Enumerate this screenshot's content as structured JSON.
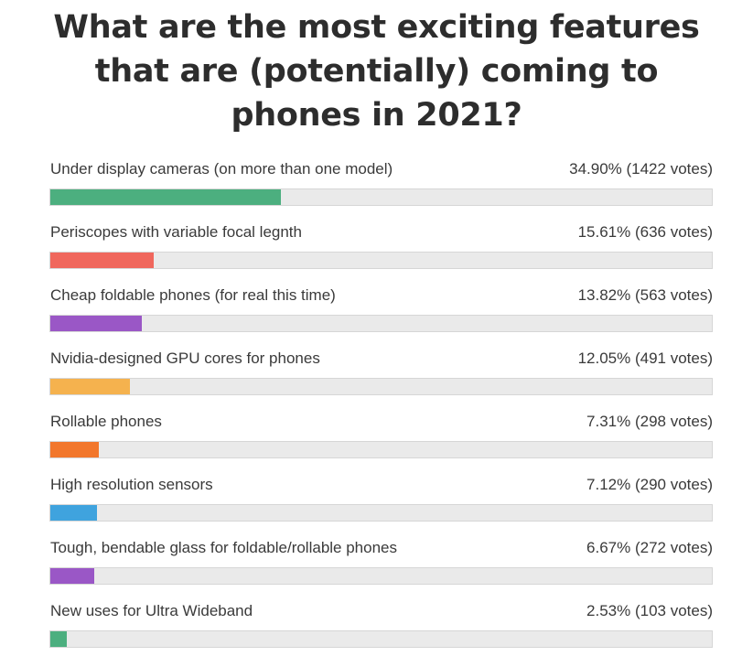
{
  "poll": {
    "title": "What are the most exciting features that are (potentially) coming to phones in 2021?"
  },
  "chart_data": {
    "type": "bar",
    "title": "What are the most exciting features that are (potentially) coming to phones in 2021?",
    "orientation": "horizontal",
    "xlim": [
      0,
      100
    ],
    "unit": "percent",
    "categories": [
      "Under display cameras (on more than one model)",
      "Periscopes with variable focal legnth",
      "Cheap foldable phones (for real this time)",
      "Nvidia-designed GPU cores for phones",
      "Rollable phones",
      "High resolution sensors",
      "Tough, bendable glass for foldable/rollable phones",
      "New uses for Ultra Wideband"
    ],
    "values": [
      34.9,
      15.61,
      13.82,
      12.05,
      7.31,
      7.12,
      6.67,
      2.53
    ],
    "votes": [
      1422,
      636,
      563,
      491,
      298,
      290,
      272,
      103
    ],
    "result_labels": [
      "34.90% (1422 votes)",
      "15.61% (636 votes)",
      "13.82% (563 votes)",
      "12.05% (491 votes)",
      "7.31% (298 votes)",
      "7.12% (290 votes)",
      "6.67% (272 votes)",
      "2.53% (103 votes)"
    ],
    "colors": [
      "#4caf7f",
      "#f0675d",
      "#9a57c6",
      "#f5b24e",
      "#f2772c",
      "#3fa3de",
      "#9a57c6",
      "#4caf7f"
    ],
    "track_color": "#eaeaea",
    "grid": false
  }
}
